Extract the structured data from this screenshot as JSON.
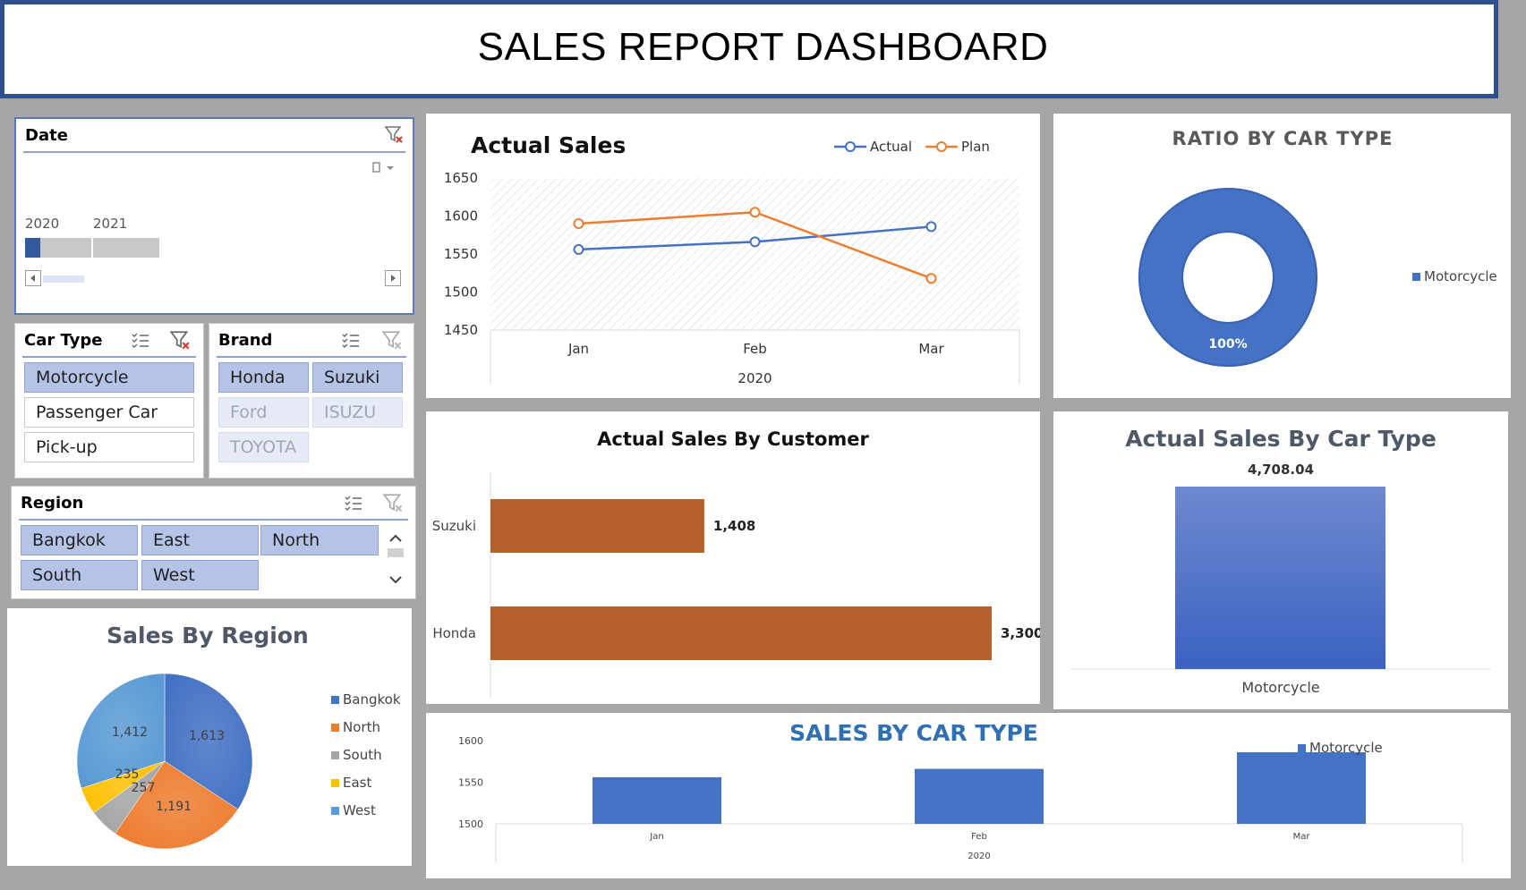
{
  "header": {
    "title": "SALES REPORT DASHBOARD"
  },
  "date_slicer": {
    "title": "Date",
    "years": [
      "2020",
      "2021"
    ],
    "selected_fraction": 0.11
  },
  "car_type_slicer": {
    "title": "Car Type",
    "items": [
      {
        "label": "Motorcycle",
        "state": "selected"
      },
      {
        "label": "Passenger Car",
        "state": "unselected"
      },
      {
        "label": "Pick-up",
        "state": "unselected"
      }
    ]
  },
  "brand_slicer": {
    "title": "Brand",
    "items": [
      {
        "label": "Honda",
        "state": "selected"
      },
      {
        "label": "Suzuki",
        "state": "selected"
      },
      {
        "label": "Ford",
        "state": "disabled"
      },
      {
        "label": "ISUZU",
        "state": "disabled"
      },
      {
        "label": "TOYOTA",
        "state": "disabled"
      }
    ]
  },
  "region_slicer": {
    "title": "Region",
    "items": [
      {
        "label": "Bangkok",
        "state": "selected"
      },
      {
        "label": "East",
        "state": "selected"
      },
      {
        "label": "North",
        "state": "selected"
      },
      {
        "label": "South",
        "state": "selected"
      },
      {
        "label": "West",
        "state": "selected"
      }
    ]
  },
  "colors": {
    "blue": "#4472c4",
    "orange": "#ed7d31",
    "gray": "#a5a5a5",
    "yellow": "#ffc000",
    "lightblue": "#5b9bd5",
    "rust": "#b5602a"
  },
  "chart_data": [
    {
      "id": "actual_sales",
      "type": "line",
      "title": "Actual Sales",
      "categories": [
        "Jan",
        "Feb",
        "Mar"
      ],
      "category_group": "2020",
      "series": [
        {
          "name": "Actual",
          "values": [
            1556,
            1566,
            1586
          ],
          "color": "#4472c4"
        },
        {
          "name": "Plan",
          "values": [
            1590,
            1605,
            1518
          ],
          "color": "#ed7d31"
        }
      ],
      "yticks": [
        "1650",
        "1600",
        "1550",
        "1500",
        "1450"
      ],
      "ylim": [
        1450,
        1650
      ],
      "legend": "top-right"
    },
    {
      "id": "ratio_by_car_type",
      "type": "pie",
      "title": "RATIO BY CAR TYPE",
      "categories": [
        "Motorcycle"
      ],
      "values": [
        100
      ],
      "data_labels": [
        "100%"
      ],
      "legend": [
        "Motorcycle"
      ]
    },
    {
      "id": "sales_by_customer",
      "type": "bar",
      "title": "Actual Sales By Customer",
      "categories": [
        "Suzuki",
        "Honda"
      ],
      "values": [
        1408,
        3300
      ],
      "data_labels": [
        "1,408",
        "3,300"
      ],
      "xlim": [
        0,
        3300
      ]
    },
    {
      "id": "sales_by_car_type_bar",
      "type": "bar",
      "title": "Actual Sales By Car Type",
      "categories": [
        "Motorcycle"
      ],
      "values": [
        4708.04
      ],
      "data_labels": [
        "4,708.04"
      ]
    },
    {
      "id": "sales_by_region",
      "type": "pie",
      "title": "Sales By Region",
      "categories": [
        "Bangkok",
        "North",
        "South",
        "East",
        "West"
      ],
      "values": [
        1613,
        1191,
        257,
        235,
        1412
      ],
      "data_labels": [
        "1,613",
        "1,191",
        "257",
        "235",
        "1,412"
      ],
      "legend": "right"
    },
    {
      "id": "sales_by_car_type_monthly",
      "type": "bar",
      "title": "SALES BY CAR TYPE",
      "categories": [
        "Jan",
        "Feb",
        "Mar"
      ],
      "category_group": "2020",
      "series": [
        {
          "name": "Motorcycle",
          "values": [
            1556,
            1566,
            1586
          ]
        }
      ],
      "yticks": [
        "1600",
        "1550",
        "1500"
      ],
      "ylim": [
        1500,
        1600
      ],
      "legend": "top-right"
    }
  ]
}
